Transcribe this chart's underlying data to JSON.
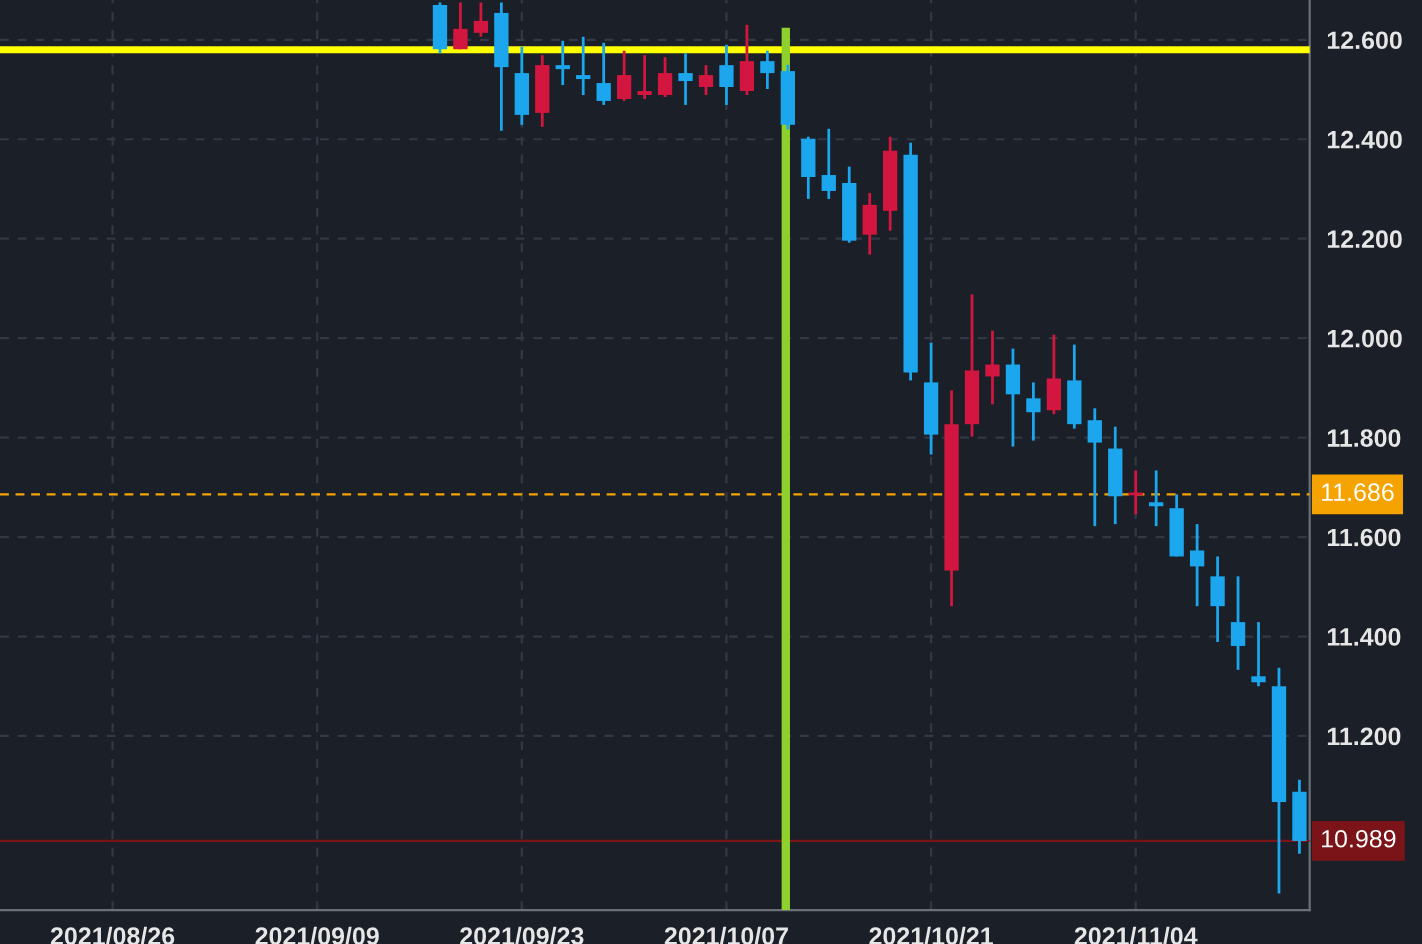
{
  "chart_data": {
    "type": "candlestick",
    "categories": [
      null,
      null,
      null,
      null,
      null,
      "2021/08/26",
      null,
      null,
      null,
      null,
      null,
      null,
      null,
      null,
      null,
      "2021/09/09",
      null,
      null,
      null,
      null,
      null,
      null,
      null,
      null,
      null,
      "2021/09/23",
      null,
      null,
      null,
      null,
      null,
      null,
      null,
      null,
      null,
      "2021/10/07",
      null,
      null,
      null,
      null,
      null,
      null,
      null,
      null,
      null,
      "2021/10/21",
      null,
      null,
      null,
      null,
      null,
      null,
      null,
      null,
      null,
      "2021/11/04",
      null,
      null,
      null,
      null,
      null,
      null,
      null,
      null
    ],
    "ohlc": [
      null,
      null,
      null,
      null,
      null,
      null,
      null,
      null,
      null,
      null,
      null,
      null,
      null,
      null,
      null,
      null,
      null,
      null,
      null,
      null,
      null,
      [
        12.67,
        12.675,
        12.573,
        12.581
      ],
      [
        12.581,
        12.675,
        12.581,
        12.622
      ],
      [
        12.614,
        12.675,
        12.606,
        12.638
      ],
      [
        12.654,
        12.675,
        12.417,
        12.545
      ],
      [
        12.533,
        12.586,
        12.429,
        12.449
      ],
      [
        12.453,
        12.569,
        12.425,
        12.549
      ],
      [
        12.549,
        12.598,
        12.509,
        12.541
      ],
      [
        12.529,
        12.606,
        12.489,
        12.521
      ],
      [
        12.513,
        12.594,
        12.469,
        12.477
      ],
      [
        12.481,
        12.578,
        12.477,
        12.529
      ],
      [
        12.489,
        12.569,
        12.481,
        12.497
      ],
      [
        12.489,
        12.565,
        12.485,
        12.533
      ],
      [
        12.533,
        12.573,
        12.469,
        12.517
      ],
      [
        12.505,
        12.549,
        12.489,
        12.529
      ],
      [
        12.549,
        12.59,
        12.469,
        12.505
      ],
      [
        12.497,
        12.63,
        12.489,
        12.557
      ],
      [
        12.557,
        12.578,
        12.501,
        12.533
      ],
      [
        12.537,
        12.55,
        12.42,
        12.429
      ],
      [
        12.401,
        12.405,
        12.28,
        12.324
      ],
      [
        12.328,
        12.421,
        12.28,
        12.296
      ],
      [
        12.312,
        12.345,
        12.192,
        12.196
      ],
      [
        12.208,
        12.292,
        12.168,
        12.268
      ],
      [
        12.256,
        12.405,
        12.216,
        12.377
      ],
      [
        12.369,
        12.393,
        11.915,
        11.931
      ],
      [
        11.911,
        11.991,
        11.766,
        11.806
      ],
      [
        11.533,
        11.895,
        11.461,
        11.827
      ],
      [
        11.827,
        12.088,
        11.802,
        11.935
      ],
      [
        11.923,
        12.015,
        11.867,
        11.947
      ],
      [
        11.947,
        11.979,
        11.782,
        11.887
      ],
      [
        11.879,
        11.911,
        11.794,
        11.851
      ],
      [
        11.855,
        12.007,
        11.847,
        11.919
      ],
      [
        11.915,
        11.987,
        11.818,
        11.827
      ],
      [
        11.835,
        11.859,
        11.622,
        11.79
      ],
      [
        11.778,
        11.822,
        11.626,
        11.682
      ],
      [
        11.684,
        11.734,
        11.646,
        11.688
      ],
      [
        11.67,
        11.734,
        11.622,
        11.662
      ],
      [
        11.658,
        11.686,
        11.561,
        11.561
      ],
      [
        11.573,
        11.626,
        11.461,
        11.541
      ],
      [
        11.521,
        11.561,
        11.389,
        11.461
      ],
      [
        11.429,
        11.521,
        11.333,
        11.381
      ],
      [
        11.32,
        11.429,
        11.3,
        11.308
      ],
      [
        11.3,
        11.337,
        10.883,
        11.067
      ],
      [
        11.088,
        11.112,
        10.963,
        10.989
      ]
    ],
    "colors": [
      null,
      null,
      null,
      null,
      null,
      null,
      null,
      null,
      null,
      null,
      null,
      null,
      null,
      null,
      null,
      null,
      null,
      null,
      null,
      null,
      null,
      "#1ba6ee",
      "#d3163f",
      "#d3163f",
      "#1ba6ee",
      "#1ba6ee",
      "#d3163f",
      "#1ba6ee",
      "#1ba6ee",
      "#1ba6ee",
      "#d3163f",
      "#d3163f",
      "#d3163f",
      "#1ba6ee",
      "#d3163f",
      "#1ba6ee",
      "#d3163f",
      "#1ba6ee",
      "#1ba6ee",
      "#1ba6ee",
      "#1ba6ee",
      "#1ba6ee",
      "#d3163f",
      "#d3163f",
      "#1ba6ee",
      "#1ba6ee",
      "#d3163f",
      "#d3163f",
      "#d3163f",
      "#1ba6ee",
      "#1ba6ee",
      "#d3163f",
      "#1ba6ee",
      "#1ba6ee",
      "#1ba6ee",
      "#d3163f",
      "#1ba6ee",
      "#1ba6ee",
      "#1ba6ee",
      "#1ba6ee",
      "#1ba6ee",
      "#1ba6ee",
      "#1ba6ee",
      "#1ba6ee"
    ],
    "ylim": [
      10.85,
      12.68
    ],
    "yticks": [
      {
        "value": 11.2,
        "label": "11.200"
      },
      {
        "value": 11.4,
        "label": "11.400"
      },
      {
        "value": 11.6,
        "label": "11.600"
      },
      {
        "value": 11.8,
        "label": "11.800"
      },
      {
        "value": 12.0,
        "label": "12.000"
      },
      {
        "value": 12.2,
        "label": "12.200"
      },
      {
        "value": 12.4,
        "label": "12.400"
      },
      {
        "value": 12.6,
        "label": "12.600"
      }
    ],
    "grid": true,
    "ref_lines": [
      {
        "axis": "y",
        "value": 11.686,
        "label": "11.686",
        "color": "#f5a300",
        "line_style": "dashed"
      },
      {
        "axis": "y",
        "value": 10.989,
        "label": "10.989",
        "color": "#7a1418",
        "line_style": "solid"
      },
      {
        "axis": "y",
        "value": 12.58,
        "color": "#ffff00",
        "line_style": "solid"
      }
    ]
  }
}
